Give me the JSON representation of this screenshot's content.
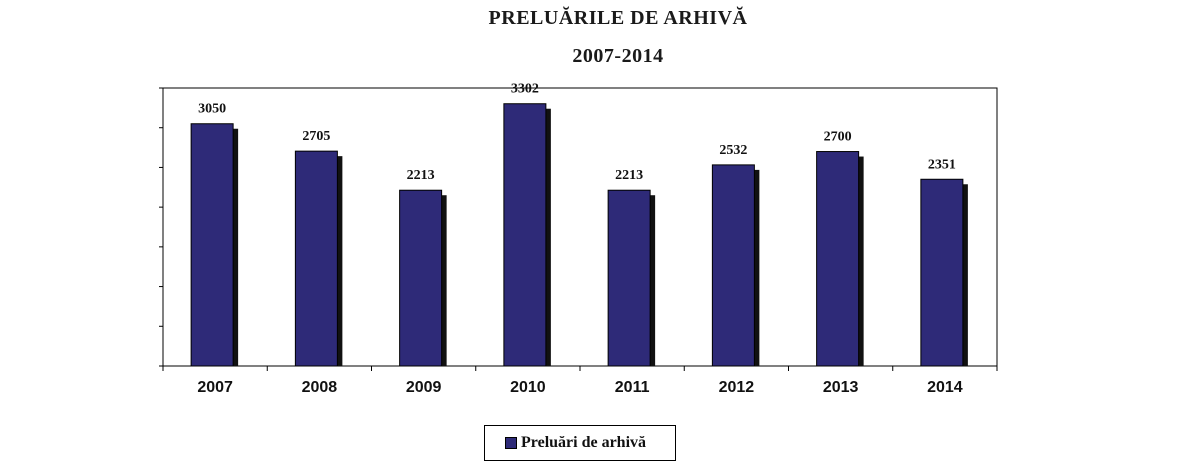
{
  "title": "PRELUĂRILE DE ARHIVĂ",
  "subtitle": "2007-2014",
  "chart_data": {
    "type": "bar",
    "categories": [
      "2007",
      "2008",
      "2009",
      "2010",
      "2011",
      "2012",
      "2013",
      "2014"
    ],
    "series": [
      {
        "name": "Preluări de arhivă",
        "values": [
          3050,
          2705,
          2213,
          3302,
          2213,
          2532,
          2700,
          2351
        ]
      }
    ],
    "data_labels": [
      "3050",
      "2705",
      "2213",
      "3302",
      "2213",
      "2532",
      "2700",
      "2351"
    ],
    "ylim": [
      0,
      3500
    ],
    "bar_color": "#2e2a78",
    "shadow_color": "#111111",
    "legend_position": "bottom"
  }
}
